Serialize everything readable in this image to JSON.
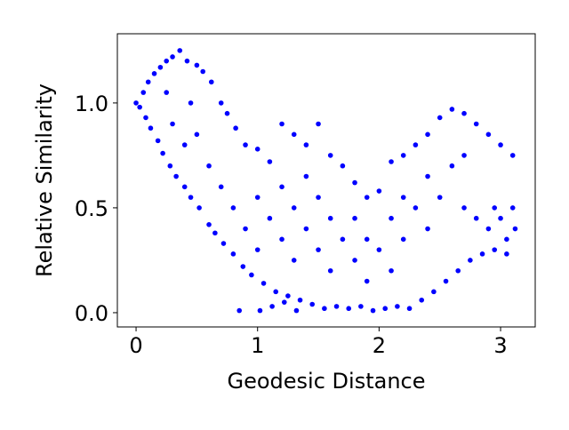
{
  "chart_data": {
    "type": "scatter",
    "x_label": "Geodesic Distance",
    "y_label": "Relative Similarity",
    "color": "#0000ff",
    "x": [
      0,
      0.03,
      0.06,
      0.08,
      0.1,
      0.12,
      0.15,
      0.18,
      0.2,
      0.22,
      0.25,
      0.28,
      0.3,
      0.33,
      0.36,
      0.4,
      0.42,
      0.45,
      0.5,
      0.52,
      0.55,
      0.6,
      0.62,
      0.65,
      0.7,
      0.72,
      0.75,
      0.8,
      0.82,
      0.85,
      0.88,
      0.9,
      0.95,
      1.0,
      1.02,
      1.05,
      1.1,
      1.12,
      1.15,
      1.2,
      1.22,
      1.25,
      1.3,
      1.32,
      1.35,
      1.4,
      1.45,
      1.5,
      1.55,
      1.6,
      1.65,
      1.7,
      1.75,
      1.8,
      1.85,
      1.9,
      1.95,
      2.0,
      2.05,
      2.1,
      2.15,
      2.2,
      2.25,
      2.3,
      2.35,
      2.4,
      2.45,
      2.5,
      2.55,
      2.6,
      2.65,
      2.7,
      2.75,
      2.8,
      2.85,
      2.9,
      2.95,
      3.0,
      3.05,
      3.1,
      3.12,
      3.1,
      3.0,
      2.9,
      2.95,
      3.05,
      2.8,
      2.7,
      0.5,
      0.6,
      0.7,
      0.8,
      0.9,
      1.0,
      1.0,
      1.1,
      1.2,
      1.2,
      1.3,
      1.3,
      1.4,
      1.4,
      1.5,
      1.5,
      1.6,
      1.6,
      1.7,
      1.8,
      1.8,
      1.9,
      1.9,
      2.0,
      2.1,
      2.1,
      2.2,
      2.2,
      2.3,
      2.4,
      2.4,
      2.5,
      2.6,
      2.7,
      0.3,
      0.4,
      0.45,
      0.25
    ],
    "y": [
      1.0,
      0.98,
      1.05,
      0.93,
      1.1,
      0.88,
      1.14,
      0.82,
      1.17,
      0.76,
      1.2,
      0.7,
      1.22,
      0.65,
      1.25,
      0.6,
      1.2,
      0.55,
      1.18,
      0.5,
      1.15,
      0.42,
      1.1,
      0.38,
      1.0,
      0.33,
      0.95,
      0.28,
      0.88,
      0.01,
      0.22,
      0.8,
      0.18,
      0.78,
      0.01,
      0.14,
      0.72,
      0.03,
      0.1,
      0.9,
      0.05,
      0.08,
      0.85,
      0.01,
      0.06,
      0.8,
      0.04,
      0.9,
      0.02,
      0.75,
      0.03,
      0.7,
      0.02,
      0.62,
      0.03,
      0.55,
      0.01,
      0.58,
      0.02,
      0.72,
      0.03,
      0.75,
      0.02,
      0.8,
      0.06,
      0.85,
      0.1,
      0.93,
      0.15,
      0.97,
      0.2,
      0.95,
      0.25,
      0.9,
      0.28,
      0.85,
      0.3,
      0.8,
      0.35,
      0.75,
      0.4,
      0.5,
      0.45,
      0.4,
      0.5,
      0.28,
      0.45,
      0.5,
      0.85,
      0.7,
      0.6,
      0.5,
      0.4,
      0.3,
      0.55,
      0.45,
      0.35,
      0.6,
      0.25,
      0.5,
      0.4,
      0.65,
      0.3,
      0.55,
      0.2,
      0.45,
      0.35,
      0.25,
      0.45,
      0.15,
      0.35,
      0.3,
      0.2,
      0.45,
      0.35,
      0.55,
      0.5,
      0.4,
      0.65,
      0.55,
      0.7,
      0.75,
      0.9,
      0.8,
      1.0,
      1.05
    ],
    "xlim": [
      -0.154,
      3.285
    ],
    "ylim": [
      -0.068,
      1.33
    ],
    "xticks": [
      0,
      1,
      2,
      3
    ],
    "yticks": [
      {
        "value": 0,
        "label": "0.0"
      },
      {
        "value": 0.5,
        "label": "0.5"
      },
      {
        "value": 1,
        "label": "1.0"
      }
    ]
  }
}
